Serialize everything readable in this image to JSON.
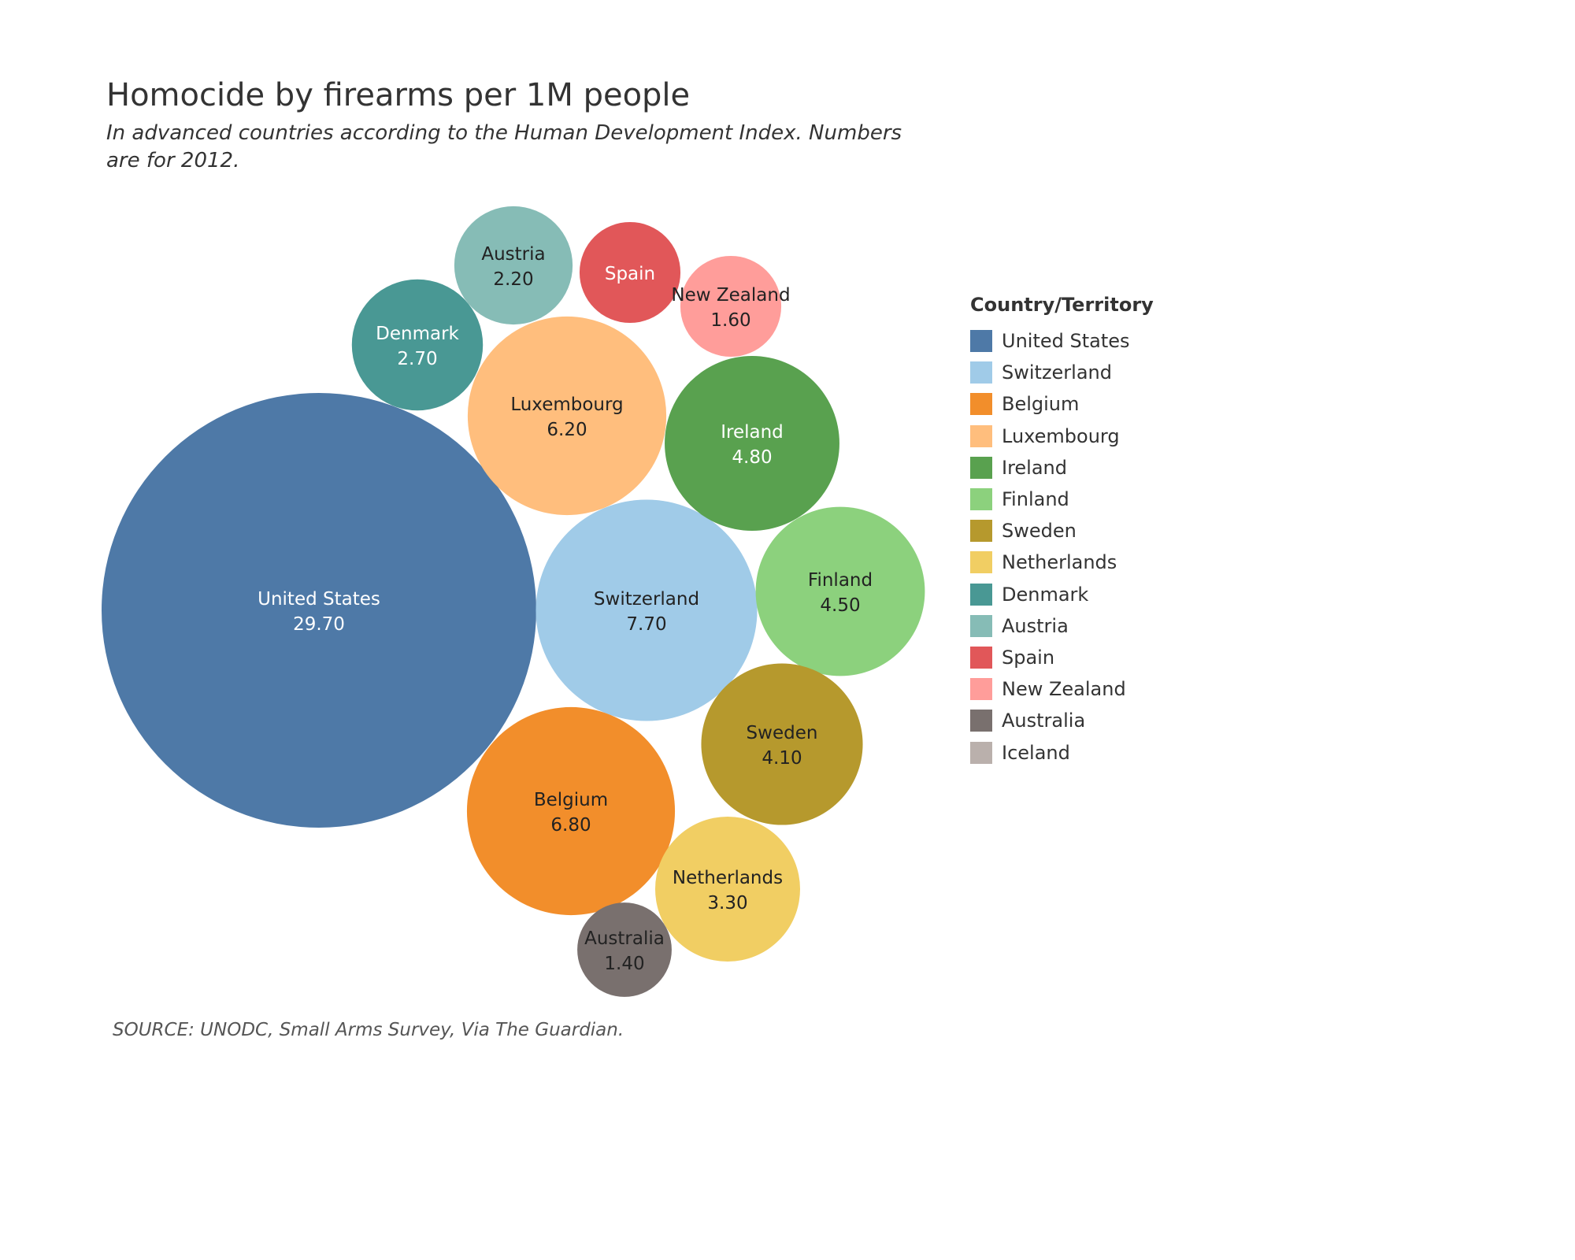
{
  "title": "Homocide by firearms per 1M people",
  "subtitle": "In advanced countries according to the Human Development Index. Numbers are for 2012.",
  "source": "SOURCE: UNODC, Small Arms Survey, Via The Guardian.",
  "legend": {
    "title": "Country/Territory",
    "items": [
      {
        "label": "United States",
        "color": "#4e79a7"
      },
      {
        "label": "Switzerland",
        "color": "#a0cbe8"
      },
      {
        "label": "Belgium",
        "color": "#f28e2b"
      },
      {
        "label": "Luxembourg",
        "color": "#ffbe7d"
      },
      {
        "label": "Ireland",
        "color": "#59a14f"
      },
      {
        "label": "Finland",
        "color": "#8cd17d"
      },
      {
        "label": "Sweden",
        "color": "#b6992d"
      },
      {
        "label": "Netherlands",
        "color": "#f1ce63"
      },
      {
        "label": "Denmark",
        "color": "#499894"
      },
      {
        "label": "Austria",
        "color": "#86bcb6"
      },
      {
        "label": "Spain",
        "color": "#e15759"
      },
      {
        "label": "New Zealand",
        "color": "#ff9d9a"
      },
      {
        "label": "Australia",
        "color": "#79706e"
      },
      {
        "label": "Iceland",
        "color": "#bab0ac"
      }
    ]
  },
  "chart_data": {
    "type": "bubble",
    "series": [
      {
        "name": "United States",
        "value": 29.7,
        "label": "29.70",
        "color": "#4e79a7",
        "text_color": "#ffffff"
      },
      {
        "name": "Switzerland",
        "value": 7.7,
        "label": "7.70",
        "color": "#a0cbe8",
        "text_color": "#222222"
      },
      {
        "name": "Belgium",
        "value": 6.8,
        "label": "6.80",
        "color": "#f28e2b",
        "text_color": "#222222"
      },
      {
        "name": "Luxembourg",
        "value": 6.2,
        "label": "6.20",
        "color": "#ffbe7d",
        "text_color": "#222222"
      },
      {
        "name": "Ireland",
        "value": 4.8,
        "label": "4.80",
        "color": "#59a14f",
        "text_color": "#ffffff"
      },
      {
        "name": "Finland",
        "value": 4.5,
        "label": "4.50",
        "color": "#8cd17d",
        "text_color": "#222222"
      },
      {
        "name": "Sweden",
        "value": 4.1,
        "label": "4.10",
        "color": "#b6992d",
        "text_color": "#222222"
      },
      {
        "name": "Netherlands",
        "value": 3.3,
        "label": "3.30",
        "color": "#f1ce63",
        "text_color": "#222222"
      },
      {
        "name": "Denmark",
        "value": 2.7,
        "label": "2.70",
        "color": "#499894",
        "text_color": "#ffffff"
      },
      {
        "name": "Austria",
        "value": 2.2,
        "label": "2.20",
        "color": "#86bcb6",
        "text_color": "#222222"
      },
      {
        "name": "Spain",
        "value": 1.6,
        "label": "",
        "color": "#e15759",
        "text_color": "#ffffff"
      },
      {
        "name": "New Zealand",
        "value": 1.6,
        "label": "1.60",
        "color": "#ff9d9a",
        "text_color": "#222222"
      },
      {
        "name": "Australia",
        "value": 1.4,
        "label": "1.40",
        "color": "#79706e",
        "text_color": "#222222"
      }
    ]
  }
}
